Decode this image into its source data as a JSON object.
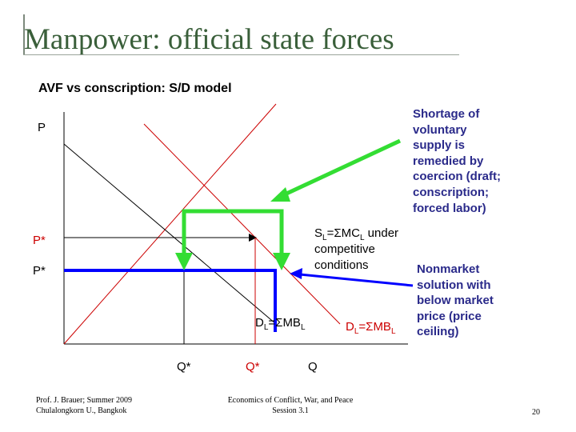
{
  "slide": {
    "title": "Manpower: official state forces",
    "subtitle": "AVF vs conscription: S/D model"
  },
  "axes": {
    "y_label": "P",
    "x_label": "Q"
  },
  "labels": {
    "p_star_market": "P*",
    "p_star_ceiling": "P*",
    "q_star_ceiling": "Q*",
    "q_star_market": "Q*",
    "supply": {
      "main": "S",
      "sub": "L",
      "rest": "=ΣMC",
      "sub2": "L",
      "tail": " under"
    },
    "supply_line2": "competitive",
    "supply_line3": "conditions",
    "demand_black": {
      "main": "D",
      "sub": "L",
      "rest": "=ΣMB",
      "sub2": "L"
    },
    "demand_red": {
      "main": "D",
      "sub": "L",
      "rest": "=ΣMB",
      "sub2": "L"
    }
  },
  "notes": {
    "shortage": [
      "Shortage of",
      "voluntary",
      "supply is",
      "remedied by",
      "coercion (draft;",
      "conscription;",
      "forced labor)"
    ],
    "nonmarket": [
      "Nonmarket",
      "solution with",
      "below market",
      "price (price",
      "ceiling)"
    ]
  },
  "footer": {
    "left_line1": "Prof. J. Brauer; Summer 2009",
    "left_line2": "Chulalongkorn U., Bangkok",
    "center_line1": "Economics of Conflict, War, and Peace",
    "center_line2": "Session 3.1",
    "page_number": "20"
  },
  "colors": {
    "title": "#3a5f3a",
    "supply_line": "#cc0000",
    "demand_line": "#000000",
    "green_arrow": "#33dd33",
    "ceiling_line": "#0000ff",
    "note_text": "#2a2a8a"
  }
}
